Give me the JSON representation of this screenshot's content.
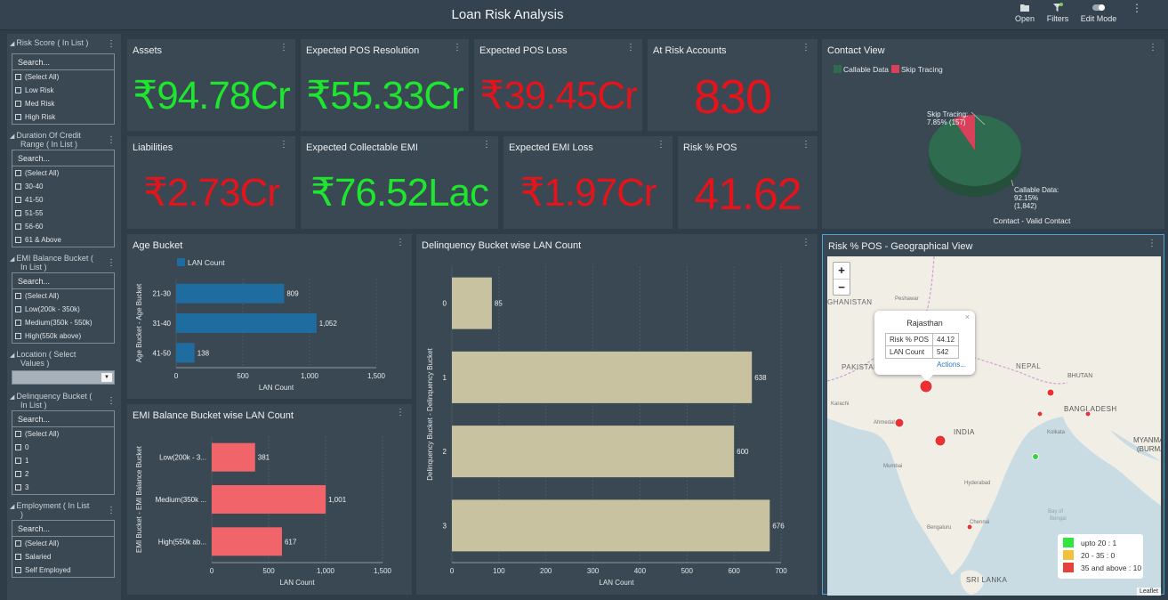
{
  "header": {
    "title": "Loan Risk Analysis",
    "open_label": "Open",
    "filters_label": "Filters",
    "edit_mode_label": "Edit Mode",
    "menu_icon": "more-vertical-icon"
  },
  "filters": {
    "search_placeholder": "Search...",
    "risk_score": {
      "title": "Risk Score ( In List )",
      "options": [
        "(Select All)",
        "Low Risk",
        "Med Risk",
        "High Risk"
      ]
    },
    "duration": {
      "title_line1": "Duration Of Credit",
      "title_line2": "Range ( In List )",
      "options": [
        "(Select All)",
        "30-40",
        "41-50",
        "51-55",
        "56-60",
        "61 & Above"
      ]
    },
    "emi_balance": {
      "title_line1": "EMI Balance Bucket (",
      "title_line2": "In List )",
      "options": [
        "(Select All)",
        "Low(200k - 350k)",
        "Medium(350k - 550k)",
        "High(550k above)"
      ]
    },
    "location": {
      "title_line1": "Location ( Select",
      "title_line2": "Values )"
    },
    "delinquency": {
      "title_line1": "Delinquency Bucket (",
      "title_line2": "In List )",
      "options": [
        "(Select All)",
        "0",
        "1",
        "2",
        "3"
      ]
    },
    "employment": {
      "title_line1": "Employment ( In List",
      "title_line2": ")",
      "options": [
        "(Select All)",
        "Salaried",
        "Self Employed"
      ]
    }
  },
  "kpis": {
    "assets": {
      "title": "Assets",
      "value": "₹94.78Cr",
      "color": "#1ee62f"
    },
    "pos_resolution": {
      "title": "Expected POS Resolution",
      "value": "₹55.33Cr",
      "color": "#1ee62f"
    },
    "pos_loss": {
      "title": "Expected POS Loss",
      "value": "₹39.45Cr",
      "color": "#e3141b"
    },
    "at_risk": {
      "title": "At Risk Accounts",
      "value": "830",
      "color": "#e3141b"
    },
    "liabilities": {
      "title": "Liabilities",
      "value": "₹2.73Cr",
      "color": "#e3141b"
    },
    "collectable_emi": {
      "title": "Expected Collectable EMI",
      "value": "₹76.52Lac",
      "color": "#1ee62f"
    },
    "emi_loss": {
      "title": "Expected EMI Loss",
      "value": "₹1.97Cr",
      "color": "#e3141b"
    },
    "risk_pos": {
      "title": "Risk % POS",
      "value": "41.62",
      "color": "#e3141b"
    }
  },
  "contact_view": {
    "title": "Contact View",
    "legend": [
      "Callable Data",
      "Skip Tracing"
    ],
    "skip_label_line1": "Skip Tracing:",
    "skip_label_line2": "7.85% (157)",
    "callable_label_line1": "Callable Data:",
    "callable_label_line2": "92.15%",
    "callable_label_line3": "(1,842)",
    "caption": "Contact - Valid Contact"
  },
  "geo": {
    "title": "Risk % POS - Geographical View",
    "zoom_in": "+",
    "zoom_out": "−",
    "popup": {
      "title": "Rajasthan",
      "row1_label": "Risk % POS",
      "row1_value": "44.12",
      "row2_label": "LAN Count",
      "row2_value": "542",
      "actions": "Actions...",
      "close": "×"
    },
    "legend": [
      "upto 20 : 1",
      "20 - 35 : 0",
      "35 and above : 10"
    ],
    "attribution": "Leaflet",
    "places": [
      "GHANISTAN",
      "Peshawar",
      "PAKISTAN",
      "Karachi",
      "Ahmedabad",
      "INDIA",
      "Mumbai",
      "Hyderabad",
      "Bengaluru",
      "Chennai",
      "SRI LANKA",
      "NEPAL",
      "BHUTAN",
      "BANGLADESH",
      "Kolkata",
      "MYANMAR",
      "(BURMA)",
      "Bay of",
      "Bengal"
    ]
  },
  "chart_data": [
    {
      "id": "age_bucket",
      "type": "bar",
      "title": "Age Bucket",
      "orientation": "horizontal",
      "categories": [
        "21-30",
        "31-40",
        "41-50"
      ],
      "series": [
        {
          "name": "LAN Count",
          "values": [
            809,
            1052,
            138
          ]
        }
      ],
      "value_labels": [
        "809",
        "1,052",
        "138"
      ],
      "xlabel": "LAN Count",
      "ylabel": "Age Bucket - Age Bucket",
      "xlim": [
        0,
        1500
      ],
      "ticks": [
        "0",
        "500",
        "1,000",
        "1,500"
      ],
      "color": "#1f6ca0"
    },
    {
      "id": "emi_bucket",
      "type": "bar",
      "title": "EMI Balance Bucket wise LAN Count",
      "orientation": "horizontal",
      "categories": [
        "Low(200k - 3...",
        "Medium(350k ...",
        "High(550k ab..."
      ],
      "values": [
        381,
        1001,
        617
      ],
      "value_labels": [
        "381",
        "1,001",
        "617"
      ],
      "xlabel": "LAN Count",
      "ylabel": "EMI Bucket - EMI Balance Bucket",
      "xlim": [
        0,
        1500
      ],
      "ticks": [
        "0",
        "500",
        "1,000",
        "1,500"
      ],
      "color": "#f0646a"
    },
    {
      "id": "delinquency",
      "type": "bar",
      "title": "Delinquency Bucket wise LAN Count",
      "orientation": "horizontal",
      "categories": [
        "0",
        "1",
        "2",
        "3"
      ],
      "values": [
        85,
        638,
        600,
        676
      ],
      "value_labels": [
        "85",
        "638",
        "600",
        "676"
      ],
      "xlabel": "LAN Count",
      "ylabel": "Delinquency Bucket - Delinquency Bucket",
      "xlim": [
        0,
        700
      ],
      "ticks": [
        "0",
        "100",
        "200",
        "300",
        "400",
        "500",
        "600",
        "700"
      ],
      "color": "#c8c2a0"
    },
    {
      "id": "contact_pie",
      "type": "pie",
      "labels": [
        "Callable Data",
        "Skip Tracing"
      ],
      "values": [
        1842,
        157
      ],
      "percent": [
        92.15,
        7.85
      ],
      "colors": [
        "#2f6c4f",
        "#d9405a"
      ]
    }
  ]
}
